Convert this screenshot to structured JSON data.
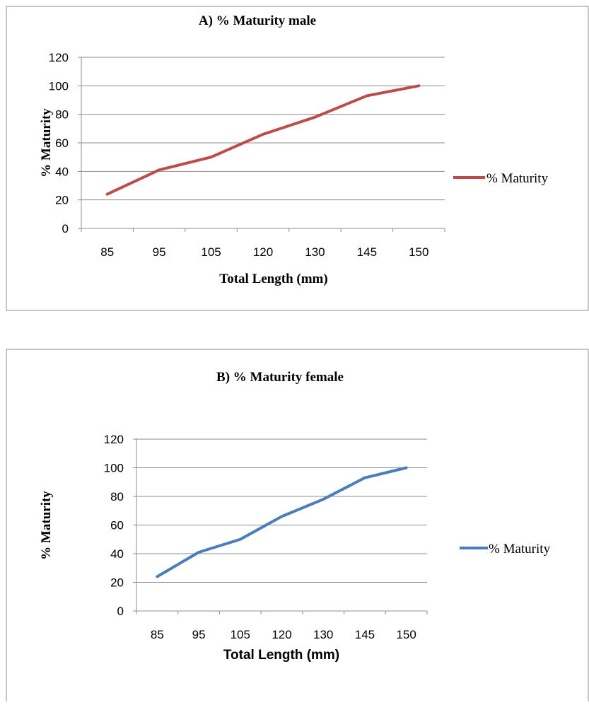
{
  "chart_data": [
    {
      "type": "line",
      "title": "A) % Maturity male",
      "xlabel": "Total Length (mm)",
      "ylabel": "% Maturity",
      "categories": [
        "85",
        "95",
        "105",
        "120",
        "130",
        "145",
        "150"
      ],
      "series": [
        {
          "name": "% Maturity",
          "values": [
            24,
            41,
            50,
            66,
            78,
            93,
            100
          ],
          "color": "#be4b48"
        }
      ],
      "ylim": [
        0,
        120
      ],
      "yticks": [
        0,
        20,
        40,
        60,
        80,
        100,
        120
      ],
      "grid": "horizontal",
      "legend": "right"
    },
    {
      "type": "line",
      "title": "B) % Maturity female",
      "xlabel": "Total Length (mm)",
      "ylabel": "% Maturity",
      "categories": [
        "85",
        "95",
        "105",
        "120",
        "130",
        "145",
        "150"
      ],
      "series": [
        {
          "name": "% Maturity",
          "values": [
            24,
            41,
            50,
            66,
            78,
            93,
            100
          ],
          "color": "#4a7ebb"
        }
      ],
      "ylim": [
        0,
        120
      ],
      "yticks": [
        0,
        20,
        40,
        60,
        80,
        100,
        120
      ],
      "grid": "horizontal",
      "legend": "right"
    }
  ]
}
